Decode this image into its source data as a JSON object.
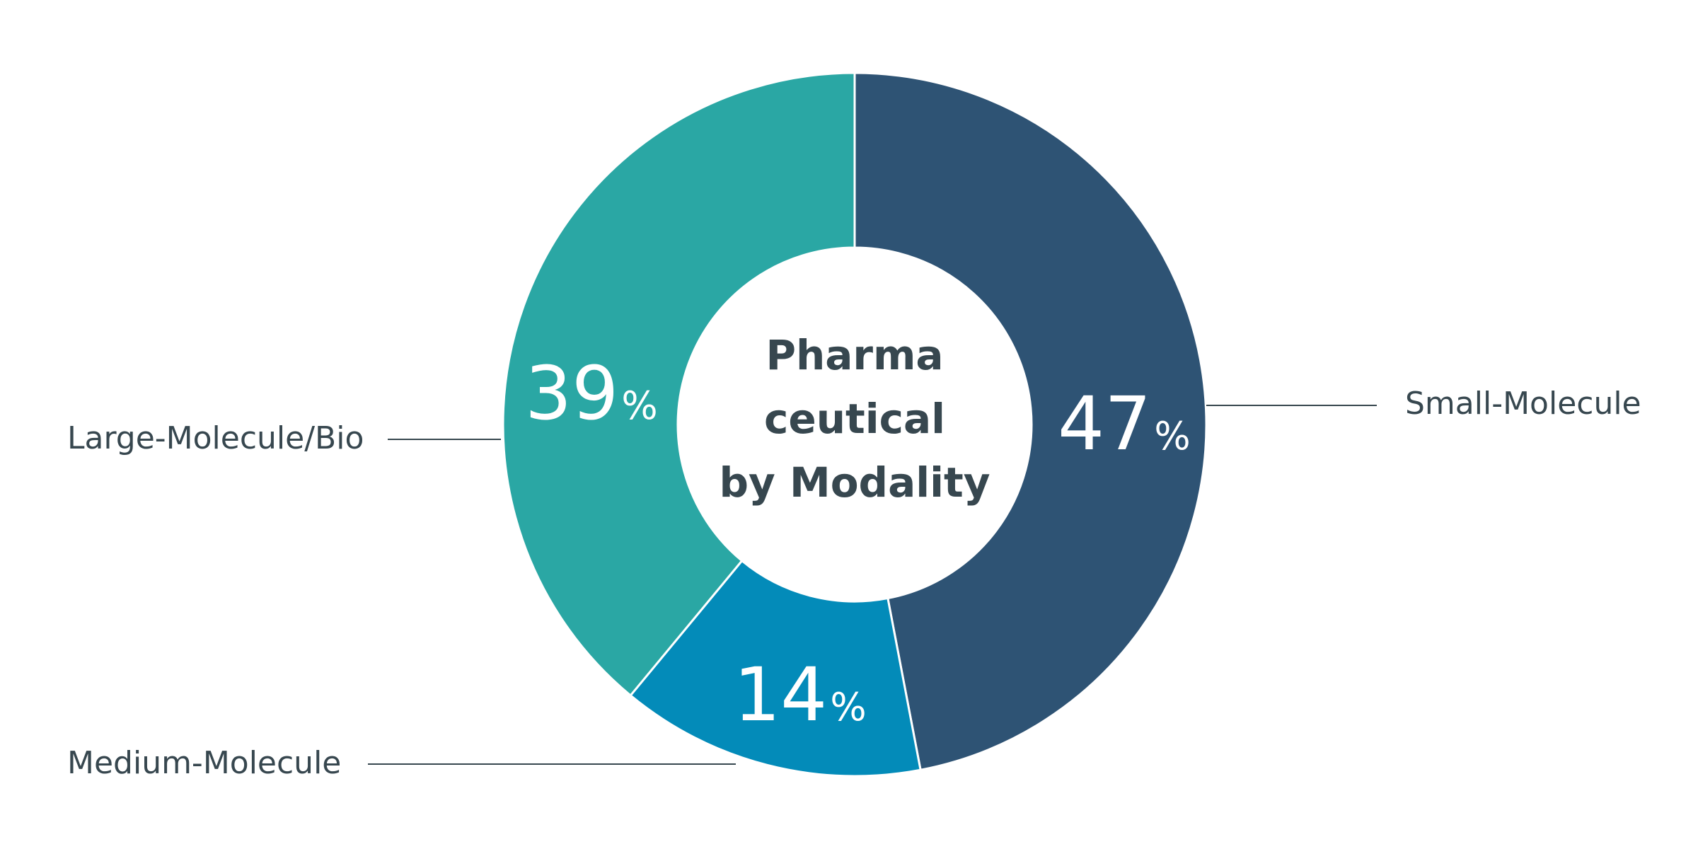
{
  "chart_data": {
    "type": "pie",
    "title": "Pharma ceutical by Modality",
    "title_lines": [
      "Pharma",
      "ceutical",
      "by Modality"
    ],
    "categories": [
      "Small-Molecule",
      "Medium-Molecule",
      "Large-Molecule/Bio"
    ],
    "values": [
      47,
      14,
      39
    ],
    "value_labels": [
      "47",
      "14",
      "39"
    ],
    "unit": "%",
    "colors": [
      "#2e5374",
      "#038bb9",
      "#2aa7a4"
    ],
    "label_color": "#37474f",
    "donut": true
  }
}
